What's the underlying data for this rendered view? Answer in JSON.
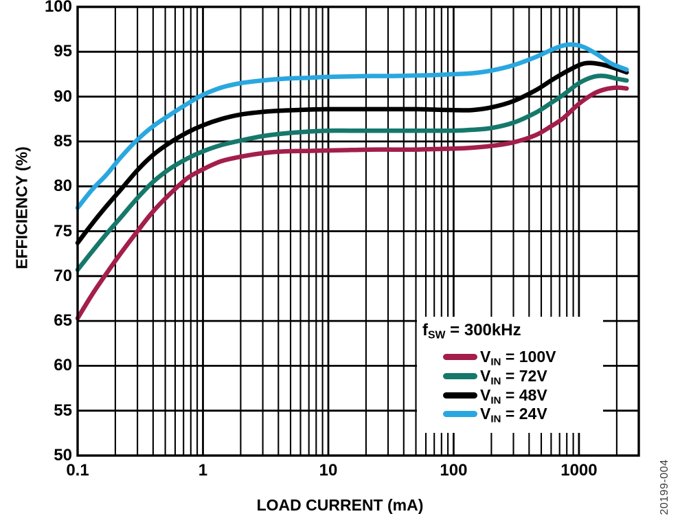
{
  "figure_code": "20199-004",
  "axes": {
    "x_label": "LOAD CURRENT (mA)",
    "y_label": "EFFICIENCY (%)"
  },
  "legend": {
    "title": {
      "sym": "f",
      "sub": "SW",
      "rest": " = 300kHz"
    },
    "items": [
      {
        "sym": "V",
        "sub": "IN",
        "rest": " = 100V",
        "color": "#A31E4B"
      },
      {
        "sym": "V",
        "sub": "IN",
        "rest": " = 72V",
        "color": "#15786B"
      },
      {
        "sym": "V",
        "sub": "IN",
        "rest": " = 48V",
        "color": "#000000"
      },
      {
        "sym": "V",
        "sub": "IN",
        "rest": " = 24V",
        "color": "#2AA7DF"
      }
    ]
  },
  "chart_data": {
    "type": "line",
    "title": "",
    "xlabel": "LOAD CURRENT (mA)",
    "ylabel": "EFFICIENCY (%)",
    "x_scale": "log",
    "xlim": [
      0.1,
      3000
    ],
    "ylim": [
      50,
      100
    ],
    "grid": true,
    "annotation": "fSW = 300kHz",
    "legend_position": "lower-right",
    "x_ticks": [
      {
        "value": 0.1,
        "label": "0.1"
      },
      {
        "value": 1,
        "label": "1"
      },
      {
        "value": 10,
        "label": "10"
      },
      {
        "value": 100,
        "label": "100"
      },
      {
        "value": 1000,
        "label": "1000"
      }
    ],
    "y_ticks": [
      {
        "value": 100,
        "label": "100"
      },
      {
        "value": 95,
        "label": "95"
      },
      {
        "value": 90,
        "label": "90"
      },
      {
        "value": 85,
        "label": "85"
      },
      {
        "value": 80,
        "label": "80"
      },
      {
        "value": 75,
        "label": "75"
      },
      {
        "value": 70,
        "label": "70"
      },
      {
        "value": 65,
        "label": "65"
      },
      {
        "value": 60,
        "label": "60"
      },
      {
        "value": 55,
        "label": "55"
      },
      {
        "value": 50,
        "label": "50"
      }
    ],
    "series": [
      {
        "name": "VIN = 100V",
        "color": "#A31E4B",
        "points": [
          [
            0.1,
            65.3
          ],
          [
            0.13,
            67.9
          ],
          [
            0.17,
            70.3
          ],
          [
            0.22,
            72.5
          ],
          [
            0.3,
            75.0
          ],
          [
            0.4,
            77.2
          ],
          [
            0.55,
            79.2
          ],
          [
            0.75,
            80.9
          ],
          [
            1,
            81.9
          ],
          [
            1.4,
            82.8
          ],
          [
            2,
            83.3
          ],
          [
            3,
            83.7
          ],
          [
            4.5,
            83.9
          ],
          [
            7,
            83.95
          ],
          [
            10,
            84.0
          ],
          [
            15,
            84.05
          ],
          [
            22,
            84.1
          ],
          [
            33,
            84.1
          ],
          [
            50,
            84.1
          ],
          [
            70,
            84.15
          ],
          [
            100,
            84.2
          ],
          [
            140,
            84.3
          ],
          [
            200,
            84.5
          ],
          [
            300,
            84.9
          ],
          [
            450,
            85.7
          ],
          [
            600,
            86.7
          ],
          [
            750,
            87.6
          ],
          [
            1000,
            89.2
          ],
          [
            1300,
            90.3
          ],
          [
            1600,
            90.8
          ],
          [
            2000,
            91.0
          ],
          [
            2400,
            90.9
          ]
        ]
      },
      {
        "name": "VIN = 72V",
        "color": "#15786B",
        "points": [
          [
            0.1,
            70.7
          ],
          [
            0.13,
            72.7
          ],
          [
            0.17,
            74.7
          ],
          [
            0.22,
            76.5
          ],
          [
            0.3,
            78.7
          ],
          [
            0.4,
            80.5
          ],
          [
            0.55,
            82.0
          ],
          [
            0.75,
            83.1
          ],
          [
            1,
            83.9
          ],
          [
            1.4,
            84.6
          ],
          [
            2,
            85.1
          ],
          [
            3,
            85.6
          ],
          [
            4.5,
            85.9
          ],
          [
            7,
            86.1
          ],
          [
            10,
            86.2
          ],
          [
            15,
            86.2
          ],
          [
            22,
            86.2
          ],
          [
            33,
            86.2
          ],
          [
            50,
            86.2
          ],
          [
            70,
            86.2
          ],
          [
            100,
            86.2
          ],
          [
            140,
            86.3
          ],
          [
            200,
            86.5
          ],
          [
            300,
            87.1
          ],
          [
            450,
            88.2
          ],
          [
            600,
            89.3
          ],
          [
            750,
            90.2
          ],
          [
            1000,
            91.5
          ],
          [
            1300,
            92.2
          ],
          [
            1600,
            92.3
          ],
          [
            2000,
            92.0
          ],
          [
            2400,
            91.8
          ]
        ]
      },
      {
        "name": "VIN = 48V",
        "color": "#000000",
        "points": [
          [
            0.1,
            73.7
          ],
          [
            0.13,
            75.8
          ],
          [
            0.17,
            77.8
          ],
          [
            0.22,
            79.6
          ],
          [
            0.3,
            81.8
          ],
          [
            0.4,
            83.5
          ],
          [
            0.55,
            84.9
          ],
          [
            0.75,
            86.0
          ],
          [
            1,
            86.8
          ],
          [
            1.4,
            87.5
          ],
          [
            2,
            88.0
          ],
          [
            3,
            88.3
          ],
          [
            4.5,
            88.45
          ],
          [
            7,
            88.55
          ],
          [
            10,
            88.6
          ],
          [
            15,
            88.6
          ],
          [
            22,
            88.6
          ],
          [
            33,
            88.6
          ],
          [
            50,
            88.6
          ],
          [
            70,
            88.55
          ],
          [
            100,
            88.5
          ],
          [
            140,
            88.5
          ],
          [
            200,
            88.8
          ],
          [
            300,
            89.5
          ],
          [
            450,
            90.7
          ],
          [
            600,
            91.8
          ],
          [
            750,
            92.6
          ],
          [
            1000,
            93.5
          ],
          [
            1200,
            93.75
          ],
          [
            1500,
            93.6
          ],
          [
            1900,
            93.2
          ],
          [
            2400,
            92.7
          ]
        ]
      },
      {
        "name": "VIN = 24V",
        "color": "#2AA7DF",
        "points": [
          [
            0.1,
            77.6
          ],
          [
            0.13,
            79.6
          ],
          [
            0.17,
            81.3
          ],
          [
            0.22,
            83.2
          ],
          [
            0.3,
            85.2
          ],
          [
            0.4,
            86.7
          ],
          [
            0.55,
            88.0
          ],
          [
            0.75,
            89.2
          ],
          [
            1,
            90.2
          ],
          [
            1.4,
            91.0
          ],
          [
            2,
            91.5
          ],
          [
            3,
            91.8
          ],
          [
            4.5,
            92.0
          ],
          [
            7,
            92.1
          ],
          [
            10,
            92.2
          ],
          [
            15,
            92.25
          ],
          [
            22,
            92.3
          ],
          [
            33,
            92.3
          ],
          [
            50,
            92.35
          ],
          [
            70,
            92.4
          ],
          [
            100,
            92.5
          ],
          [
            140,
            92.6
          ],
          [
            200,
            92.9
          ],
          [
            300,
            93.5
          ],
          [
            450,
            94.4
          ],
          [
            600,
            95.2
          ],
          [
            750,
            95.7
          ],
          [
            900,
            95.8
          ],
          [
            1100,
            95.5
          ],
          [
            1400,
            94.7
          ],
          [
            1800,
            93.7
          ],
          [
            2400,
            93.0
          ]
        ]
      }
    ]
  }
}
